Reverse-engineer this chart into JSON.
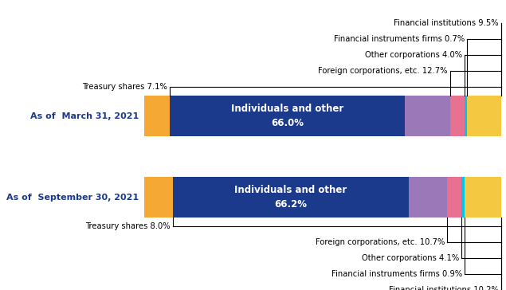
{
  "row1_label": "As of  March 31, 2021",
  "row2_label": "As of  September 30, 2021",
  "segments": [
    {
      "name": "Treasury shares",
      "val1": 7.1,
      "val2": 8.0,
      "color": "#F5A833"
    },
    {
      "name": "Individuals and other",
      "val1": 66.0,
      "val2": 66.2,
      "color": "#1B3A8C"
    },
    {
      "name": "Foreign corporations",
      "val1": 12.7,
      "val2": 10.7,
      "color": "#9B79B8"
    },
    {
      "name": "Other corporations",
      "val1": 4.0,
      "val2": 4.1,
      "color": "#E87090"
    },
    {
      "name": "Financial instruments",
      "val1": 0.7,
      "val2": 0.9,
      "color": "#00C4E8"
    },
    {
      "name": "Financial institutions",
      "val1": 9.5,
      "val2": 10.2,
      "color": "#F5C842"
    }
  ],
  "label_color": "#1B3A8C",
  "top_annotations": [
    {
      "label": "Financial institutions 9.5%",
      "seg_idx": 5,
      "row": 1
    },
    {
      "label": "Financial instruments firms 0.7%",
      "seg_idx": 4,
      "row": 1
    },
    {
      "label": "Other corporations 4.0%",
      "seg_idx": 3,
      "row": 1
    },
    {
      "label": "Foreign corporations, etc. 12.7%",
      "seg_idx": 2,
      "row": 1
    },
    {
      "label": "Treasury shares 7.1%",
      "seg_idx": 0,
      "row": 1
    }
  ],
  "bottom_annotations": [
    {
      "label": "Treasury shares 8.0%",
      "seg_idx": 0,
      "row": 2
    },
    {
      "label": "Foreign corporations, etc. 10.7%",
      "seg_idx": 2,
      "row": 2
    },
    {
      "label": "Other corporations 4.1%",
      "seg_idx": 3,
      "row": 2
    },
    {
      "label": "Financial instruments firms 0.9%",
      "seg_idx": 4,
      "row": 2
    },
    {
      "label": "Financial institutions 10.2%",
      "seg_idx": 5,
      "row": 2
    }
  ],
  "bar1_inner_label": "Individuals and other\n66.0%",
  "bar2_inner_label": "Individuals and other\n66.2%"
}
